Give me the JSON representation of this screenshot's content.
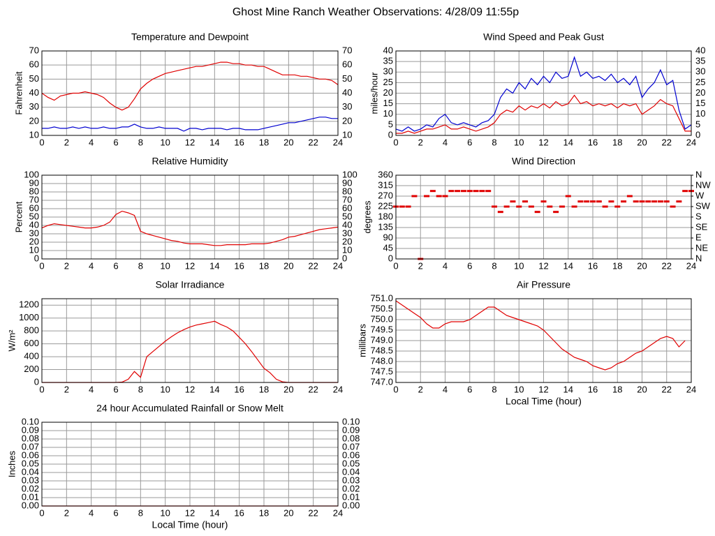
{
  "page_title": "Ghost Mine Ranch Weather Observations: 4/28/09 11:55p",
  "chart_data": [
    {
      "type": "line",
      "title": "Temperature and Dewpoint",
      "y_label": "Fahrenheit",
      "mirror_y": true,
      "grid": true,
      "x": [
        0,
        0.5,
        1,
        1.5,
        2,
        2.5,
        3,
        3.5,
        4,
        4.5,
        5,
        5.5,
        6,
        6.5,
        7,
        7.5,
        8,
        8.5,
        9,
        9.5,
        10,
        10.5,
        11,
        11.5,
        12,
        12.5,
        13,
        13.5,
        14,
        14.5,
        15,
        15.5,
        16,
        16.5,
        17,
        17.5,
        18,
        18.5,
        19,
        19.5,
        20,
        20.5,
        21,
        21.5,
        22,
        22.5,
        23,
        23.5,
        24
      ],
      "xlim": [
        0,
        24
      ],
      "xticks": [
        0,
        2,
        4,
        6,
        8,
        10,
        12,
        14,
        16,
        18,
        20,
        22,
        24
      ],
      "ylim": [
        10,
        70
      ],
      "yticks": [
        10,
        20,
        30,
        40,
        50,
        60,
        70
      ],
      "series": [
        {
          "color": "#e00000",
          "values": [
            40,
            37,
            35,
            38,
            39,
            40,
            40,
            41,
            40,
            39,
            37,
            33,
            30,
            28,
            30,
            36,
            43,
            47,
            50,
            52,
            54,
            55,
            56,
            57,
            58,
            59,
            59,
            60,
            61,
            62,
            62,
            61,
            61,
            60,
            60,
            59,
            59,
            57,
            55,
            53,
            53,
            53,
            52,
            52,
            51,
            50,
            50,
            49,
            46
          ]
        },
        {
          "color": "#0000d0",
          "values": [
            15,
            15,
            16,
            15,
            15,
            16,
            15,
            16,
            15,
            15,
            16,
            15,
            15,
            16,
            16,
            18,
            16,
            15,
            15,
            16,
            15,
            15,
            15,
            13,
            15,
            15,
            14,
            15,
            15,
            15,
            14,
            15,
            15,
            14,
            14,
            14,
            15,
            16,
            17,
            18,
            19,
            19,
            20,
            21,
            22,
            23,
            23,
            22,
            22
          ]
        }
      ]
    },
    {
      "type": "line",
      "title": "Wind Speed and Peak Gust",
      "y_label": "miles/hour",
      "mirror_y": true,
      "grid": true,
      "x": [
        0,
        0.5,
        1,
        1.5,
        2,
        2.5,
        3,
        3.5,
        4,
        4.5,
        5,
        5.5,
        6,
        6.5,
        7,
        7.5,
        8,
        8.5,
        9,
        9.5,
        10,
        10.5,
        11,
        11.5,
        12,
        12.5,
        13,
        13.5,
        14,
        14.5,
        15,
        15.5,
        16,
        16.5,
        17,
        17.5,
        18,
        18.5,
        19,
        19.5,
        20,
        20.5,
        21,
        21.5,
        22,
        22.5,
        23,
        23.5,
        24
      ],
      "xlim": [
        0,
        24
      ],
      "xticks": [
        0,
        2,
        4,
        6,
        8,
        10,
        12,
        14,
        16,
        18,
        20,
        22,
        24
      ],
      "ylim": [
        0,
        40
      ],
      "yticks": [
        0,
        5,
        10,
        15,
        20,
        25,
        30,
        35,
        40
      ],
      "series": [
        {
          "color": "#0000d0",
          "values": [
            3,
            2,
            4,
            2,
            3,
            5,
            4,
            8,
            10,
            6,
            5,
            6,
            5,
            4,
            6,
            7,
            10,
            18,
            22,
            20,
            25,
            22,
            27,
            24,
            28,
            25,
            30,
            27,
            28,
            37,
            28,
            30,
            27,
            28,
            26,
            29,
            25,
            27,
            24,
            28,
            18,
            22,
            25,
            31,
            24,
            26,
            12,
            3,
            5
          ]
        },
        {
          "color": "#e00000",
          "values": [
            1,
            1,
            2,
            1,
            2,
            3,
            3,
            4,
            5,
            3,
            3,
            4,
            3,
            2,
            3,
            4,
            6,
            10,
            12,
            11,
            14,
            12,
            14,
            13,
            15,
            13,
            16,
            14,
            15,
            19,
            15,
            16,
            14,
            15,
            14,
            15,
            13,
            15,
            14,
            15,
            10,
            12,
            14,
            17,
            15,
            14,
            8,
            2,
            2
          ]
        }
      ]
    },
    {
      "type": "line",
      "title": "Relative Humidity",
      "y_label": "Percent",
      "mirror_y": true,
      "grid": true,
      "x": [
        0,
        0.5,
        1,
        1.5,
        2,
        2.5,
        3,
        3.5,
        4,
        4.5,
        5,
        5.5,
        6,
        6.5,
        7,
        7.5,
        8,
        8.5,
        9,
        9.5,
        10,
        10.5,
        11,
        11.5,
        12,
        12.5,
        13,
        13.5,
        14,
        14.5,
        15,
        15.5,
        16,
        16.5,
        17,
        17.5,
        18,
        18.5,
        19,
        19.5,
        20,
        20.5,
        21,
        21.5,
        22,
        22.5,
        23,
        23.5,
        24
      ],
      "xlim": [
        0,
        24
      ],
      "xticks": [
        0,
        2,
        4,
        6,
        8,
        10,
        12,
        14,
        16,
        18,
        20,
        22,
        24
      ],
      "ylim": [
        0,
        100
      ],
      "yticks": [
        0,
        10,
        20,
        30,
        40,
        50,
        60,
        70,
        80,
        90,
        100
      ],
      "series": [
        {
          "color": "#e00000",
          "values": [
            37,
            40,
            42,
            41,
            40,
            39,
            38,
            37,
            37,
            38,
            40,
            44,
            53,
            57,
            55,
            52,
            33,
            30,
            28,
            26,
            24,
            22,
            21,
            19,
            18,
            18,
            18,
            17,
            16,
            16,
            17,
            17,
            17,
            17,
            18,
            18,
            18,
            19,
            21,
            23,
            26,
            27,
            29,
            31,
            33,
            35,
            36,
            37,
            38
          ]
        }
      ]
    },
    {
      "type": "scatter",
      "title": "Wind Direction",
      "y_label": "degrees",
      "grid": true,
      "x": [
        0,
        0.5,
        1,
        1.5,
        2,
        2.5,
        3,
        3.5,
        4,
        4.5,
        5,
        5.5,
        6,
        6.5,
        7,
        7.5,
        8,
        8.5,
        9,
        9.5,
        10,
        10.5,
        11,
        11.5,
        12,
        12.5,
        13,
        13.5,
        14,
        14.5,
        15,
        15.5,
        16,
        16.5,
        17,
        17.5,
        18,
        18.5,
        19,
        19.5,
        20,
        20.5,
        21,
        21.5,
        22,
        22.5,
        23,
        23.5,
        24
      ],
      "xlim": [
        0,
        24
      ],
      "xticks": [
        0,
        2,
        4,
        6,
        8,
        10,
        12,
        14,
        16,
        18,
        20,
        22,
        24
      ],
      "ylim": [
        0,
        360
      ],
      "yticks": [
        0,
        45,
        90,
        135,
        180,
        225,
        270,
        315,
        360
      ],
      "y2lim": [
        0,
        360
      ],
      "y2ticks": [
        {
          "value": 0,
          "label": "N"
        },
        {
          "value": 45,
          "label": "NE"
        },
        {
          "value": 90,
          "label": "E"
        },
        {
          "value": 135,
          "label": "SE"
        },
        {
          "value": 180,
          "label": "S"
        },
        {
          "value": 225,
          "label": "SW"
        },
        {
          "value": 270,
          "label": "W"
        },
        {
          "value": 315,
          "label": "NW"
        },
        {
          "value": 360,
          "label": "N"
        }
      ],
      "series": [
        {
          "color": "#e00000",
          "values": [
            225,
            225,
            225,
            270,
            0,
            270,
            292,
            270,
            270,
            292,
            292,
            292,
            292,
            292,
            292,
            292,
            225,
            202,
            225,
            247,
            225,
            247,
            225,
            202,
            247,
            225,
            202,
            225,
            270,
            225,
            247,
            247,
            247,
            247,
            225,
            247,
            225,
            247,
            270,
            247,
            247,
            247,
            247,
            247,
            247,
            225,
            247,
            292,
            292
          ]
        }
      ]
    },
    {
      "type": "line",
      "title": "Solar Irradiance",
      "y_label": "W/m²",
      "grid": true,
      "x": [
        0,
        0.5,
        1,
        1.5,
        2,
        2.5,
        3,
        3.5,
        4,
        4.5,
        5,
        5.5,
        6,
        6.5,
        7,
        7.5,
        8,
        8.5,
        9,
        9.5,
        10,
        10.5,
        11,
        11.5,
        12,
        12.5,
        13,
        13.5,
        14,
        14.5,
        15,
        15.5,
        16,
        16.5,
        17,
        17.5,
        18,
        18.5,
        19,
        19.5,
        20,
        20.5,
        21,
        21.5,
        22,
        22.5,
        23,
        23.5,
        24
      ],
      "xlim": [
        0,
        24
      ],
      "xticks": [
        0,
        2,
        4,
        6,
        8,
        10,
        12,
        14,
        16,
        18,
        20,
        22,
        24
      ],
      "ylim": [
        0,
        1300
      ],
      "yticks": [
        0,
        200,
        400,
        600,
        800,
        1000,
        1200
      ],
      "series": [
        {
          "color": "#e00000",
          "values": [
            0,
            0,
            0,
            0,
            0,
            0,
            0,
            0,
            0,
            0,
            0,
            0,
            0,
            5,
            50,
            170,
            80,
            400,
            480,
            560,
            640,
            710,
            770,
            820,
            860,
            890,
            910,
            930,
            950,
            900,
            860,
            800,
            700,
            600,
            480,
            350,
            220,
            150,
            50,
            10,
            0,
            0,
            0,
            0,
            0,
            0,
            0,
            0,
            0
          ]
        }
      ]
    },
    {
      "type": "line",
      "title": "Air Pressure",
      "y_label": "millibars",
      "x_label": "Local Time (hour)",
      "grid": true,
      "x": [
        0,
        0.5,
        1,
        1.5,
        2,
        2.5,
        3,
        3.5,
        4,
        4.5,
        5,
        5.5,
        6,
        6.5,
        7,
        7.5,
        8,
        8.5,
        9,
        9.5,
        10,
        10.5,
        11,
        11.5,
        12,
        12.5,
        13,
        13.5,
        14,
        14.5,
        15,
        15.5,
        16,
        16.5,
        17,
        17.5,
        18,
        18.5,
        19,
        19.5,
        20,
        20.5,
        21,
        21.5,
        22,
        22.5,
        23,
        23.5,
        24
      ],
      "xlim": [
        0,
        24
      ],
      "xticks": [
        0,
        2,
        4,
        6,
        8,
        10,
        12,
        14,
        16,
        18,
        20,
        22,
        24
      ],
      "ylim": [
        747,
        751
      ],
      "yticks": [
        {
          "value": 747,
          "label": "747.0"
        },
        747.5,
        {
          "value": 748,
          "label": "748.0"
        },
        748.5,
        {
          "value": 749,
          "label": "749.0"
        },
        749.5,
        {
          "value": 750,
          "label": "750.0"
        },
        750.5,
        {
          "value": 751,
          "label": "751.0"
        }
      ],
      "series": [
        {
          "color": "#e00000",
          "values": [
            750.9,
            750.7,
            750.5,
            750.3,
            750.1,
            749.8,
            749.6,
            749.6,
            749.8,
            749.9,
            749.9,
            749.9,
            750.0,
            750.2,
            750.4,
            750.6,
            750.6,
            750.4,
            750.2,
            750.1,
            750.0,
            749.9,
            749.8,
            749.7,
            749.5,
            749.2,
            748.9,
            748.6,
            748.4,
            748.2,
            748.1,
            748.0,
            747.8,
            747.7,
            747.6,
            747.7,
            747.9,
            748.0,
            748.2,
            748.4,
            748.5,
            748.7,
            748.9,
            749.1,
            749.2,
            749.1,
            748.7,
            749.0,
            null
          ]
        }
      ]
    },
    {
      "type": "line",
      "title": "24 hour Accumulated Rainfall or Snow Melt",
      "y_label": "Inches",
      "x_label": "Local Time (hour)",
      "mirror_y": true,
      "grid": true,
      "x": [
        0,
        0.5,
        1,
        1.5,
        2,
        2.5,
        3,
        3.5,
        4,
        4.5,
        5,
        5.5,
        6,
        6.5,
        7,
        7.5,
        8,
        8.5,
        9,
        9.5,
        10,
        10.5,
        11,
        11.5,
        12,
        12.5,
        13,
        13.5,
        14,
        14.5,
        15,
        15.5,
        16,
        16.5,
        17,
        17.5,
        18,
        18.5,
        19,
        19.5,
        20,
        20.5,
        21,
        21.5,
        22,
        22.5,
        23,
        23.5,
        24
      ],
      "xlim": [
        0,
        24
      ],
      "xticks": [
        0,
        2,
        4,
        6,
        8,
        10,
        12,
        14,
        16,
        18,
        20,
        22,
        24
      ],
      "ylim": [
        0,
        0.1
      ],
      "yticks": [
        {
          "value": 0,
          "label": "0.00"
        },
        {
          "value": 0.01,
          "label": "0.01"
        },
        {
          "value": 0.02,
          "label": "0.02"
        },
        {
          "value": 0.03,
          "label": "0.03"
        },
        {
          "value": 0.04,
          "label": "0.04"
        },
        {
          "value": 0.05,
          "label": "0.05"
        },
        {
          "value": 0.06,
          "label": "0.06"
        },
        {
          "value": 0.07,
          "label": "0.07"
        },
        {
          "value": 0.08,
          "label": "0.08"
        },
        {
          "value": 0.09,
          "label": "0.09"
        },
        {
          "value": 0.1,
          "label": "0.10"
        }
      ],
      "series": [
        {
          "color": "#e00000",
          "values": [
            0,
            0,
            0,
            0,
            0,
            0,
            0,
            0,
            0,
            0,
            0,
            0,
            0,
            0,
            0,
            0,
            0,
            0,
            0,
            0,
            0,
            0,
            0,
            0,
            0,
            0,
            0,
            0,
            0,
            0,
            0,
            0,
            0,
            0,
            0,
            0,
            0,
            0,
            0,
            0,
            0,
            0,
            0,
            0,
            0,
            0,
            0,
            0,
            0
          ]
        }
      ]
    }
  ]
}
